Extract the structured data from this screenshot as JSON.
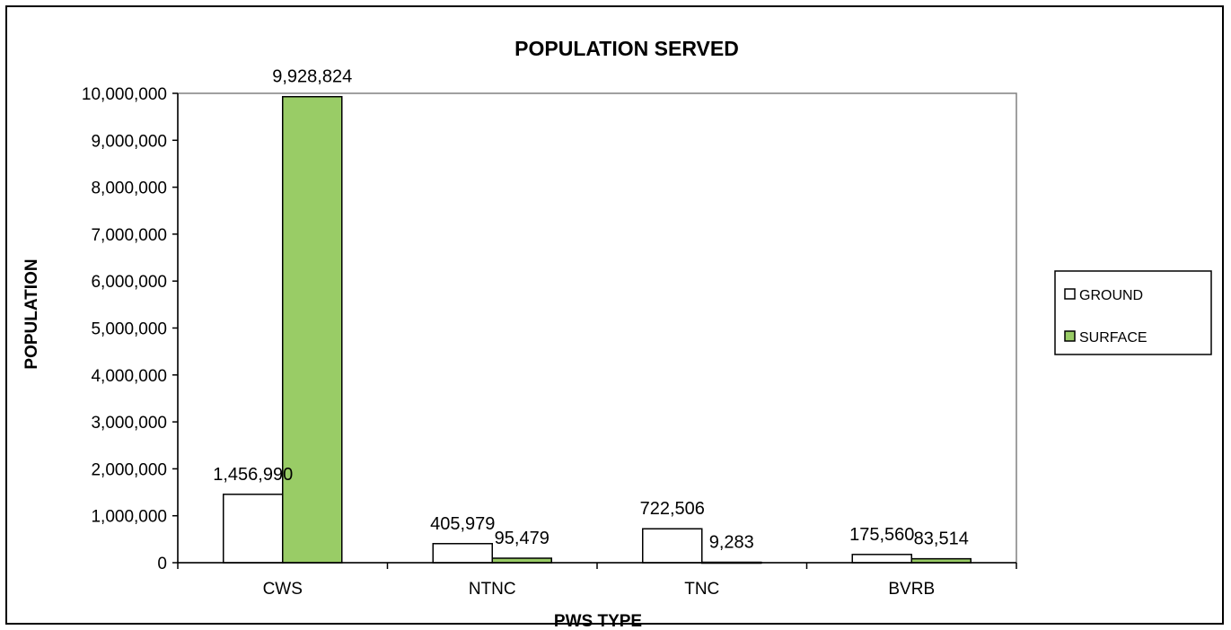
{
  "chart_data": {
    "type": "bar",
    "title": "POPULATION SERVED",
    "xlabel": "PWS TYPE",
    "ylabel": "POPULATION",
    "categories": [
      "CWS",
      "NTNC",
      "TNC",
      "BVRB"
    ],
    "series": [
      {
        "name": "GROUND",
        "values": [
          1456990,
          405979,
          722506,
          175560
        ],
        "labels": [
          "1,456,990",
          "405,979",
          "722,506",
          "175,560"
        ],
        "color": "#ffffff"
      },
      {
        "name": "SURFACE",
        "values": [
          9928824,
          95479,
          9283,
          83514
        ],
        "labels": [
          "9,928,824",
          "95,479",
          "9,283",
          "83,514"
        ],
        "color": "#99cc66"
      }
    ],
    "ylim": [
      0,
      10000000
    ],
    "yticks": [
      0,
      1000000,
      2000000,
      3000000,
      4000000,
      5000000,
      6000000,
      7000000,
      8000000,
      9000000,
      10000000
    ],
    "ytick_labels": [
      "0",
      "1,000,000",
      "2,000,000",
      "3,000,000",
      "4,000,000",
      "5,000,000",
      "6,000,000",
      "7,000,000",
      "8,000,000",
      "9,000,000",
      "10,000,000"
    ],
    "grid": false,
    "legend_position": "right"
  }
}
